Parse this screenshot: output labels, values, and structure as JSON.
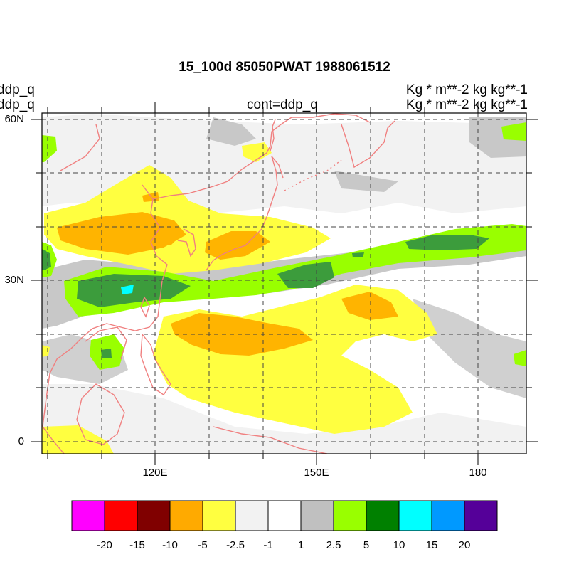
{
  "title": "15_100d 85050PWAT  1988061512",
  "left_labels": [
    "ddp_q",
    "ddp_q"
  ],
  "center_label": "cont=ddp_q",
  "right_labels": [
    "Kg  * m**-2 kg kg**-1",
    "Kg  * m**-2 kg kg**-1"
  ],
  "map": {
    "lon_range": [
      100,
      190
    ],
    "lat_range": [
      -2,
      61
    ],
    "lat_ticks": [
      {
        "lat": 60,
        "label": "60N"
      },
      {
        "lat": 30,
        "label": "30N"
      },
      {
        "lat": 0,
        "label": "0"
      }
    ],
    "lon_ticks": [
      {
        "lon": 120,
        "label": "120E"
      },
      {
        "lon": 150,
        "label": "150E"
      },
      {
        "lon": 180,
        "label": "180"
      }
    ],
    "gridlines": "dashed every 10 degrees",
    "coastline_color": "#f08080"
  },
  "colorbar": {
    "colors": [
      "#ff00ff",
      "#ff0000",
      "#800000",
      "#ffaa00",
      "#ffff40",
      "#f2f2f2",
      "#ffffff",
      "#c0c0c0",
      "#99ff00",
      "#008000",
      "#00ffff",
      "#0099ff",
      "#550099"
    ],
    "labels": [
      "-20",
      "-15",
      "-10",
      "-5",
      "-2.5",
      "-1",
      "1",
      "2.5",
      "5",
      "10",
      "15",
      "20"
    ]
  }
}
